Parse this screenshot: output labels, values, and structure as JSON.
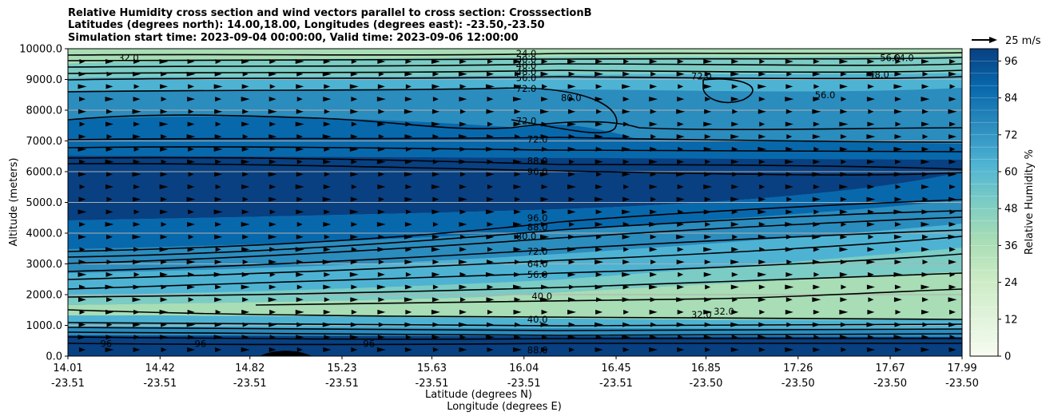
{
  "chart_data": {
    "type": "heatmap",
    "title_lines": [
      "Relative Humidity cross section and wind vectors parallel to cross section: CrosssectionB",
      "Latitudes (degrees north): 14.00,18.00, Longitudes (degrees east): -23.50,-23.50",
      "Simulation start time: 2023-09-04 00:00:00, Valid time: 2023-09-06 12:00:00"
    ],
    "ylabel": "Altitude (meters)",
    "xlabel_1": "Latitude (degrees N)",
    "xlabel_2": "Longitude (degrees E)",
    "ylim": [
      0,
      10000
    ],
    "y_ticks": [
      0,
      1000,
      2000,
      3000,
      4000,
      5000,
      6000,
      7000,
      8000,
      9000,
      10000
    ],
    "y_tick_labels": [
      "0.0",
      "1000.0",
      "2000.0",
      "3000.0",
      "4000.0",
      "5000.0",
      "6000.0",
      "7000.0",
      "8000.0",
      "9000.0",
      "10000.0"
    ],
    "x_ticks": [
      {
        "lat": "14.01",
        "lon": "-23.51"
      },
      {
        "lat": "14.42",
        "lon": "-23.51"
      },
      {
        "lat": "14.82",
        "lon": "-23.51"
      },
      {
        "lat": "15.23",
        "lon": "-23.51"
      },
      {
        "lat": "15.63",
        "lon": "-23.51"
      },
      {
        "lat": "16.04",
        "lon": "-23.51"
      },
      {
        "lat": "16.45",
        "lon": "-23.51"
      },
      {
        "lat": "16.85",
        "lon": "-23.50"
      },
      {
        "lat": "17.26",
        "lon": "-23.50"
      },
      {
        "lat": "17.67",
        "lon": "-23.50"
      },
      {
        "lat": "17.99",
        "lon": "-23.50"
      }
    ],
    "colorbar": {
      "label": "Relative Humidity %",
      "range": [
        0,
        100
      ],
      "ticks": [
        "0",
        "12",
        "24",
        "36",
        "48",
        "60",
        "72",
        "84",
        "96"
      ],
      "tick_values": [
        0,
        12,
        24,
        36,
        48,
        60,
        72,
        84,
        96
      ],
      "levels": 25,
      "colormap": "GnBu",
      "colors": [
        "#f7fcf0",
        "#e0f3db",
        "#ccebc5",
        "#a8ddb5",
        "#7bccc4",
        "#4eb3d3",
        "#2b8cbe",
        "#0868ac",
        "#084081"
      ]
    },
    "wind_key": {
      "label": "25 m/s",
      "speed": 25
    },
    "grid": true,
    "contour_labels": [
      {
        "text": "32.0",
        "x": 14.28,
        "y": 9700
      },
      {
        "text": "24.0",
        "x": 16.05,
        "y": 9850
      },
      {
        "text": "30.0",
        "x": 16.05,
        "y": 9650
      },
      {
        "text": "40.0",
        "x": 16.05,
        "y": 9450
      },
      {
        "text": "48.0",
        "x": 16.05,
        "y": 9250
      },
      {
        "text": "56.0",
        "x": 16.05,
        "y": 9050
      },
      {
        "text": "72.0",
        "x": 16.05,
        "y": 8700
      },
      {
        "text": "80.0",
        "x": 16.25,
        "y": 8400
      },
      {
        "text": "72.0",
        "x": 16.05,
        "y": 7650
      },
      {
        "text": "72.0",
        "x": 16.1,
        "y": 7050
      },
      {
        "text": "88.0",
        "x": 16.1,
        "y": 6350
      },
      {
        "text": "96.0",
        "x": 16.1,
        "y": 6000
      },
      {
        "text": "72.0",
        "x": 16.83,
        "y": 9100
      },
      {
        "text": "64.0",
        "x": 17.73,
        "y": 9700
      },
      {
        "text": "56.0",
        "x": 17.67,
        "y": 9700
      },
      {
        "text": "48.0",
        "x": 17.62,
        "y": 9150
      },
      {
        "text": "56.0",
        "x": 17.38,
        "y": 8500
      },
      {
        "text": "96.0",
        "x": 16.1,
        "y": 4500
      },
      {
        "text": "88.0",
        "x": 16.1,
        "y": 4200
      },
      {
        "text": "80.0",
        "x": 16.05,
        "y": 3900
      },
      {
        "text": "72.0",
        "x": 16.1,
        "y": 3400
      },
      {
        "text": "64.0",
        "x": 16.1,
        "y": 3000
      },
      {
        "text": "56.0",
        "x": 16.1,
        "y": 2650
      },
      {
        "text": "40.0",
        "x": 16.12,
        "y": 1950
      },
      {
        "text": "40.0",
        "x": 16.1,
        "y": 1200
      },
      {
        "text": "88.0",
        "x": 16.1,
        "y": 200
      },
      {
        "text": "32.0",
        "x": 16.83,
        "y": 1350
      },
      {
        "text": "32.0",
        "x": 16.93,
        "y": 1450
      },
      {
        "text": "96",
        "x": 14.18,
        "y": 400
      },
      {
        "text": "96",
        "x": 14.6,
        "y": 400
      },
      {
        "text": "96",
        "x": 15.35,
        "y": 400
      }
    ]
  }
}
